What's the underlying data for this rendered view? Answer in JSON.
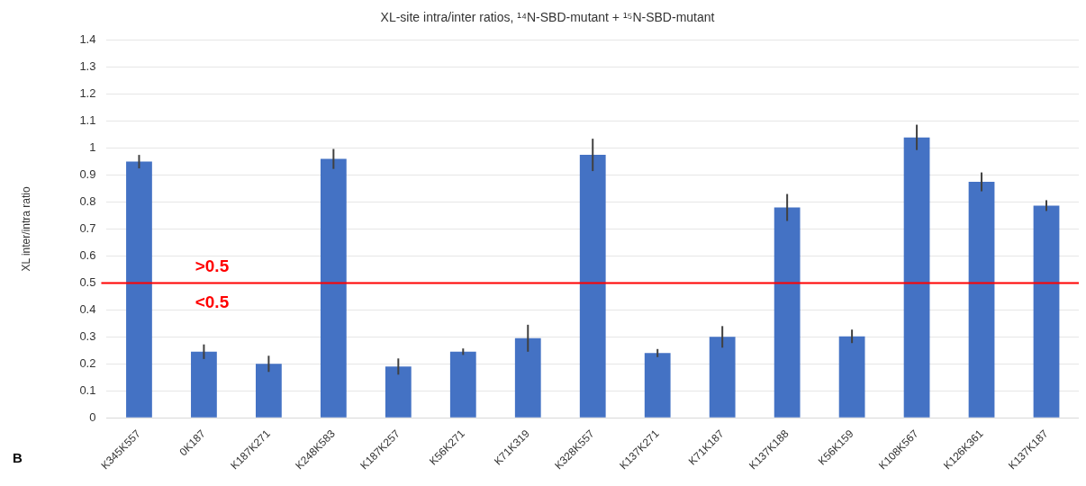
{
  "chart_data": {
    "type": "bar",
    "title": "XL-site intra/inter ratios, ¹⁴N-SBD-mutant + ¹⁵N-SBD-mutant",
    "ylabel": "XL inter/intra ratio",
    "categories": [
      "K345K557",
      "0K187",
      "K187K271",
      "K248K583",
      "K187K257",
      "K56K271",
      "K71K319",
      "K328K557",
      "K137K271",
      "K71K187",
      "K137K188",
      "K56K159",
      "K108K567",
      "K126K361",
      "K137K187"
    ],
    "values": [
      0.95,
      0.245,
      0.2,
      0.96,
      0.19,
      0.245,
      0.295,
      0.975,
      0.24,
      0.3,
      0.78,
      0.302,
      1.04,
      0.875,
      0.787
    ],
    "errors": [
      0.025,
      0.027,
      0.03,
      0.037,
      0.03,
      0.012,
      0.05,
      0.06,
      0.015,
      0.04,
      0.05,
      0.025,
      0.047,
      0.035,
      0.02
    ],
    "color": "#4472c4",
    "ylim": [
      0,
      1.4
    ],
    "yticks": [
      0,
      0.1,
      0.2,
      0.3,
      0.4,
      0.5,
      0.6,
      0.7,
      0.8,
      0.9,
      1,
      1.1,
      1.2,
      1.3,
      1.4
    ],
    "grid": "y",
    "legend": false,
    "ref_lines": [
      {
        "axis": "y",
        "value": 0.5,
        "color": "#ff0000"
      }
    ],
    "annotations": [
      ">0.5",
      "<0.5",
      "B"
    ]
  }
}
